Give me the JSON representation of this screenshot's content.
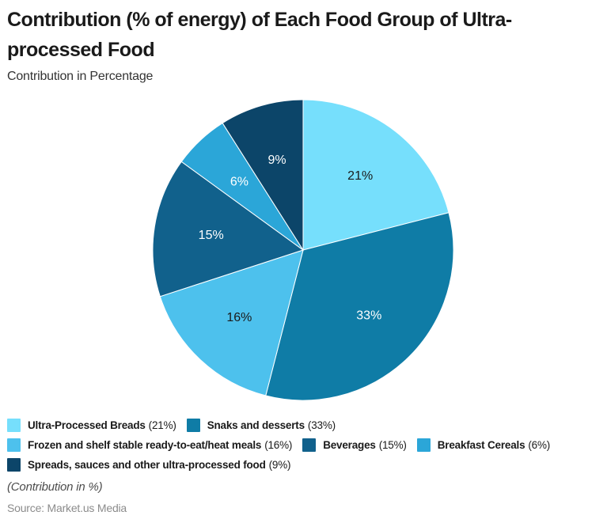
{
  "title": "Contribution (% of energy) of Each Food Group of Ultra-processed Food",
  "subtitle": "Contribution in Percentage",
  "footer": {
    "note": "(Contribution in %)",
    "source": "Source: Market.us Media"
  },
  "chart_data": {
    "type": "pie",
    "title": "Contribution (% of energy) of Each Food Group of Ultra-processed Food",
    "subtitle": "Contribution in Percentage",
    "start_angle_deg": 0,
    "direction": "clockwise",
    "legend_position": "bottom",
    "slice_border_color": "#ffffff",
    "slices": [
      {
        "label": "Ultra-Processed Breads",
        "value": 21,
        "value_label": "(21%)",
        "data_label": "21%",
        "color": "#76DFFC",
        "data_label_color": "#1a1a1a"
      },
      {
        "label": "Snaks and desserts",
        "value": 33,
        "value_label": "(33%)",
        "data_label": "33%",
        "color": "#0F7CA6",
        "data_label_color": "#ffffff"
      },
      {
        "label": "Frozen and shelf stable ready-to-eat/heat meals",
        "value": 16,
        "value_label": "(16%)",
        "data_label": "16%",
        "color": "#4DC1ED",
        "data_label_color": "#1a1a1a"
      },
      {
        "label": "Beverages",
        "value": 15,
        "value_label": "(15%)",
        "data_label": "15%",
        "color": "#11618C",
        "data_label_color": "#ffffff"
      },
      {
        "label": "Breakfast Cereals",
        "value": 6,
        "value_label": "(6%)",
        "data_label": "6%",
        "color": "#2BA6D8",
        "data_label_color": "#ffffff"
      },
      {
        "label": "Spreads, sauces and other ultra-processed food",
        "value": 9,
        "value_label": "(9%)",
        "data_label": "9%",
        "color": "#0C4569",
        "data_label_color": "#ffffff"
      }
    ],
    "legend_rows": [
      [
        0,
        1
      ],
      [
        2,
        3,
        4
      ],
      [
        5
      ]
    ]
  }
}
